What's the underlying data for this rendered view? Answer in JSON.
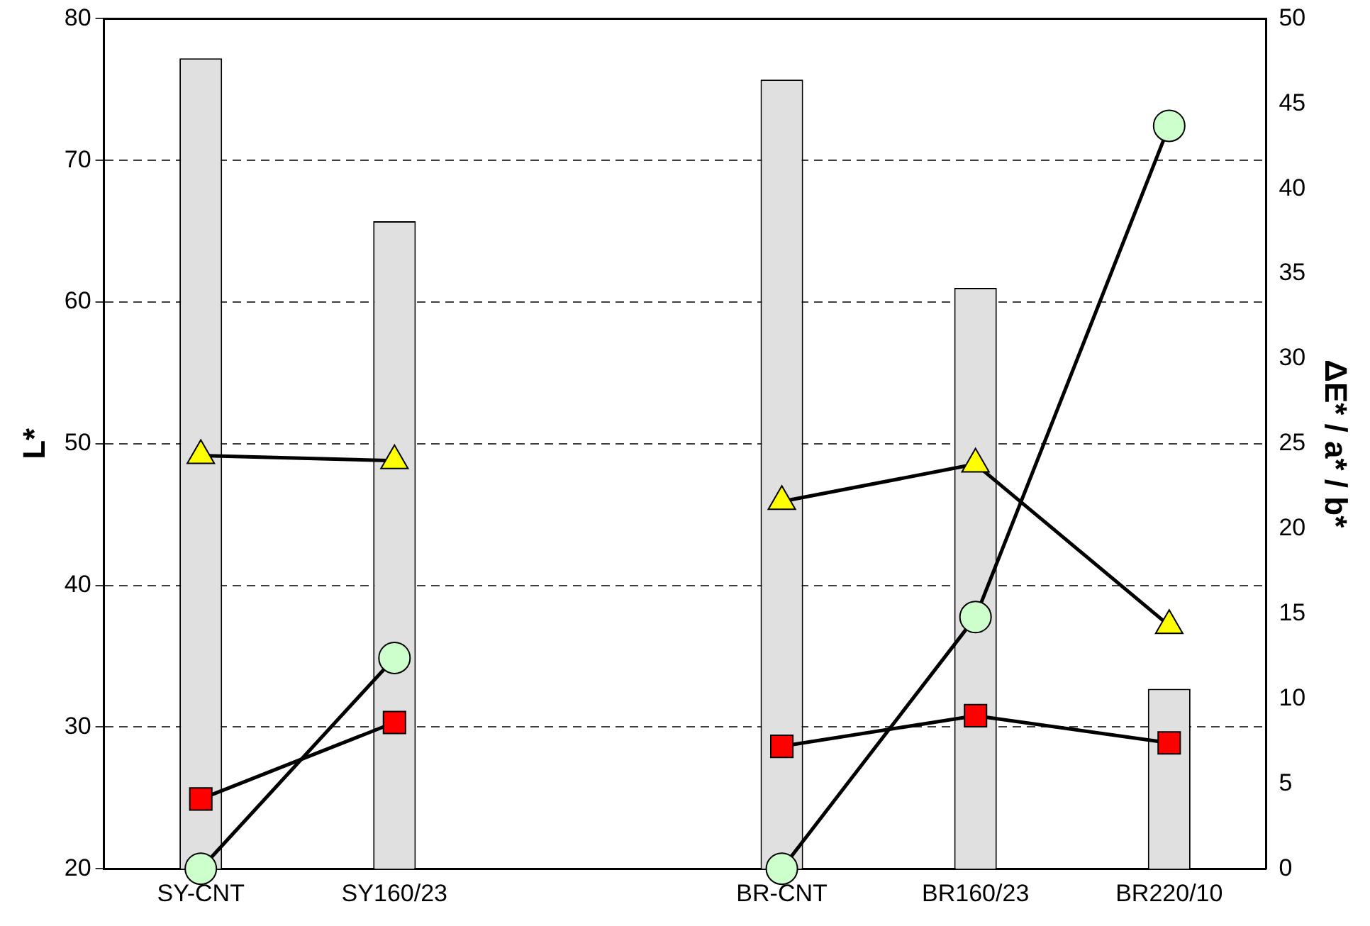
{
  "chart_data": {
    "type": "bar",
    "ylabel": "L*",
    "y2label": "ΔE* / a* / b*",
    "categories": [
      "SY-CNT",
      "SY160/23",
      null,
      "BR-CNT",
      "BR160/23",
      "BR220/10"
    ],
    "series": [
      {
        "color": "#e0e0e0",
        "values": [
          77.2,
          65.7,
          null,
          75.7,
          61.0,
          32.7
        ]
      },
      {
        "type": "line",
        "axis": "y2",
        "color": "#ffff00",
        "marker": "triangle",
        "values": [
          24.3,
          24.0,
          null,
          21.6,
          23.8,
          14.3
        ]
      },
      {
        "type": "line",
        "axis": "y2",
        "color": "#ccffcc",
        "marker": "circle",
        "values": [
          0,
          12.4,
          null,
          0,
          14.8,
          43.7
        ]
      },
      {
        "type": "line",
        "axis": "y2",
        "color": "#ff0000",
        "marker": "square",
        "values": [
          4.1,
          8.6,
          null,
          7.2,
          9.0,
          7.4
        ]
      }
    ],
    "ylim": [
      20,
      80
    ],
    "yticks": [
      20,
      30,
      40,
      50,
      60,
      70,
      80
    ],
    "y2lim": [
      0,
      50
    ],
    "y2ticks": [
      0,
      5,
      10,
      15,
      20,
      25,
      30,
      35,
      40,
      45,
      50
    ],
    "grid": "y",
    "line_style": "solid",
    "legend": false
  }
}
